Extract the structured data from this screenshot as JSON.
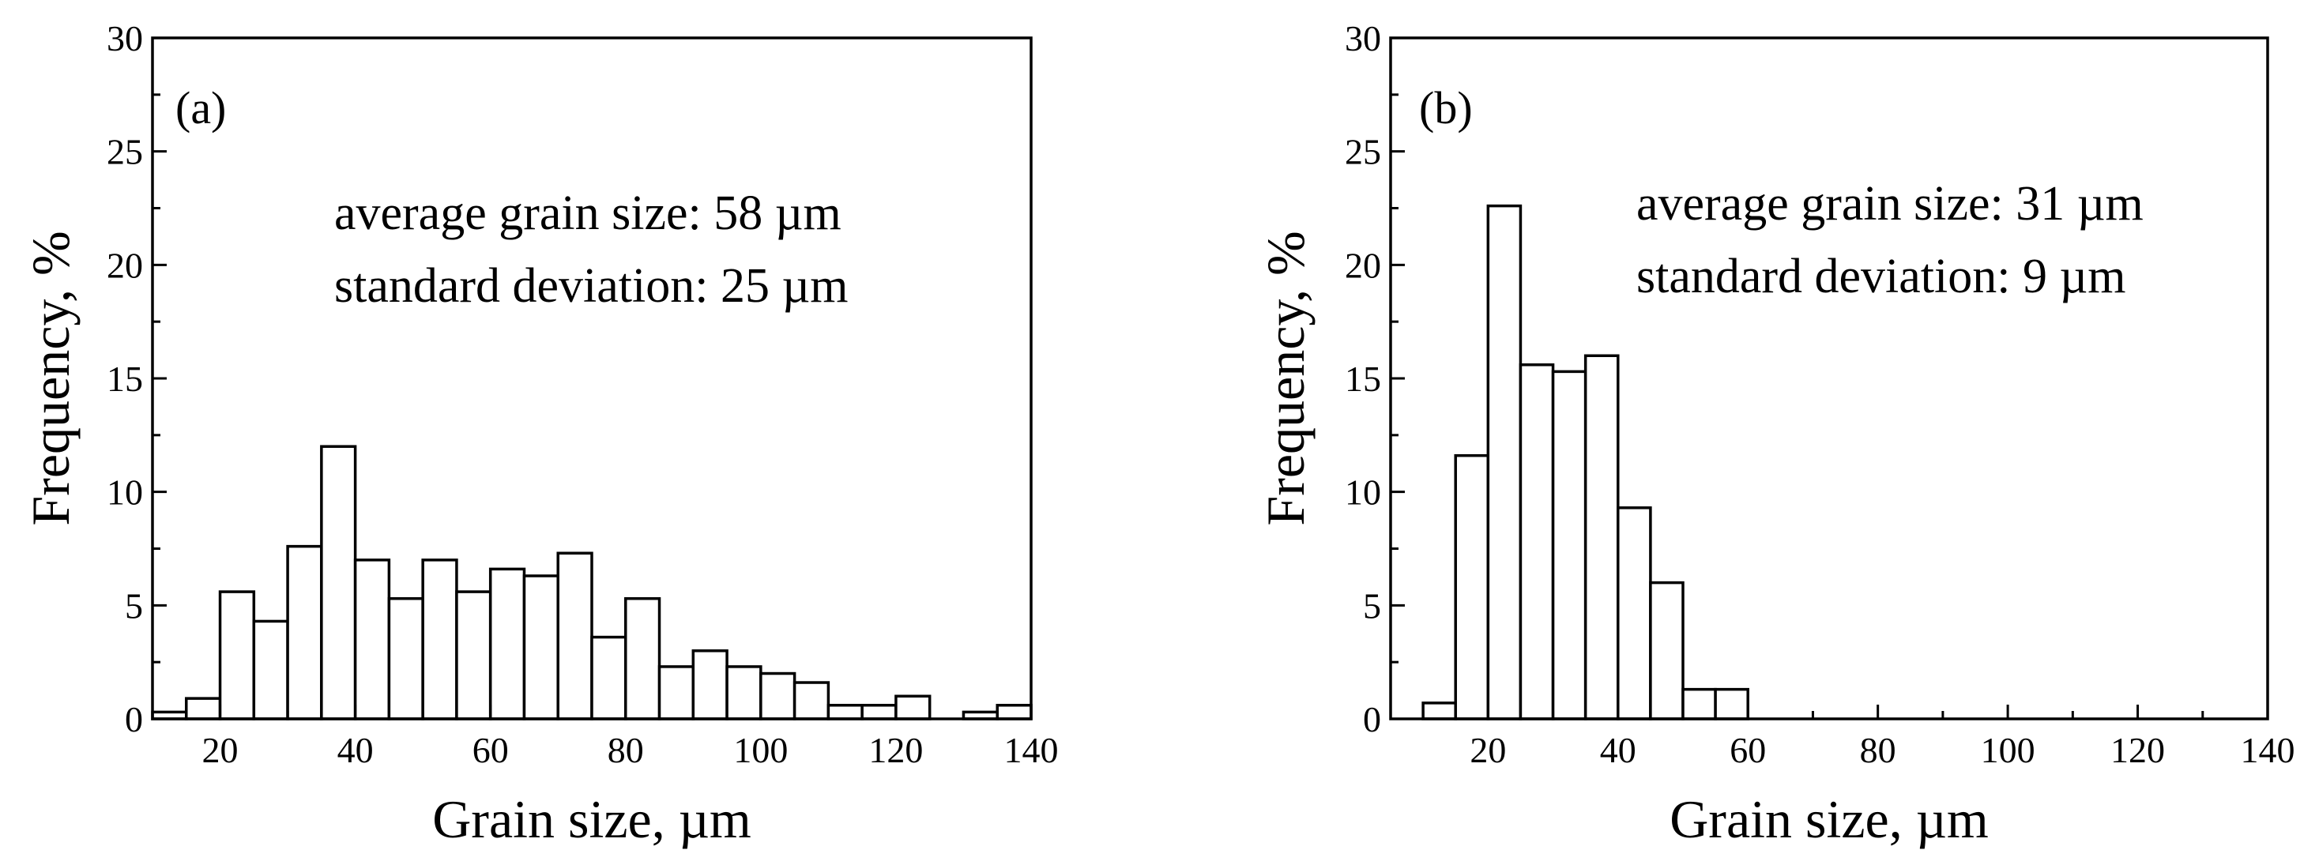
{
  "chart_data": [
    {
      "type": "bar",
      "panel_label": "(a)",
      "xlabel": "Grain size, µm",
      "ylabel": "Frequency, %",
      "xlim": [
        10,
        140
      ],
      "ylim": [
        0,
        30
      ],
      "xticks": [
        20,
        40,
        60,
        80,
        100,
        120,
        140
      ],
      "yticks": [
        0,
        5,
        10,
        15,
        20,
        25,
        30
      ],
      "bin_width": 5,
      "bins": [
        {
          "x": 10,
          "value": 0.3
        },
        {
          "x": 15,
          "value": 0.9
        },
        {
          "x": 20,
          "value": 5.6
        },
        {
          "x": 25,
          "value": 4.3
        },
        {
          "x": 30,
          "value": 7.6
        },
        {
          "x": 35,
          "value": 12.0
        },
        {
          "x": 40,
          "value": 7.0
        },
        {
          "x": 45,
          "value": 5.3
        },
        {
          "x": 50,
          "value": 7.0
        },
        {
          "x": 55,
          "value": 5.6
        },
        {
          "x": 60,
          "value": 6.6
        },
        {
          "x": 65,
          "value": 6.3
        },
        {
          "x": 70,
          "value": 7.3
        },
        {
          "x": 75,
          "value": 3.6
        },
        {
          "x": 80,
          "value": 5.3
        },
        {
          "x": 85,
          "value": 2.3
        },
        {
          "x": 90,
          "value": 3.0
        },
        {
          "x": 95,
          "value": 2.3
        },
        {
          "x": 100,
          "value": 2.0
        },
        {
          "x": 105,
          "value": 1.6
        },
        {
          "x": 110,
          "value": 0.6
        },
        {
          "x": 115,
          "value": 0.6
        },
        {
          "x": 120,
          "value": 1.0
        },
        {
          "x": 130,
          "value": 0.3
        },
        {
          "x": 135,
          "value": 0.6
        }
      ],
      "annotations": [
        "average grain size: 58 µm",
        "standard deviation: 25 µm"
      ]
    },
    {
      "type": "bar",
      "panel_label": "(b)",
      "xlabel": "Grain size, µm",
      "ylabel": "Frequency, %",
      "xlim": [
        5,
        140
      ],
      "ylim": [
        0,
        30
      ],
      "xticks": [
        20,
        40,
        60,
        80,
        100,
        120,
        140
      ],
      "yticks": [
        0,
        5,
        10,
        15,
        20,
        25,
        30
      ],
      "bin_width": 5,
      "bins": [
        {
          "x": 10,
          "value": 0.7
        },
        {
          "x": 15,
          "value": 11.6
        },
        {
          "x": 20,
          "value": 22.6
        },
        {
          "x": 25,
          "value": 15.6
        },
        {
          "x": 30,
          "value": 15.3
        },
        {
          "x": 35,
          "value": 16.0
        },
        {
          "x": 40,
          "value": 9.3
        },
        {
          "x": 45,
          "value": 6.0
        },
        {
          "x": 50,
          "value": 1.3
        },
        {
          "x": 55,
          "value": 1.3
        }
      ],
      "annotations": [
        "average grain size: 31 µm",
        "standard deviation: 9 µm"
      ]
    }
  ]
}
